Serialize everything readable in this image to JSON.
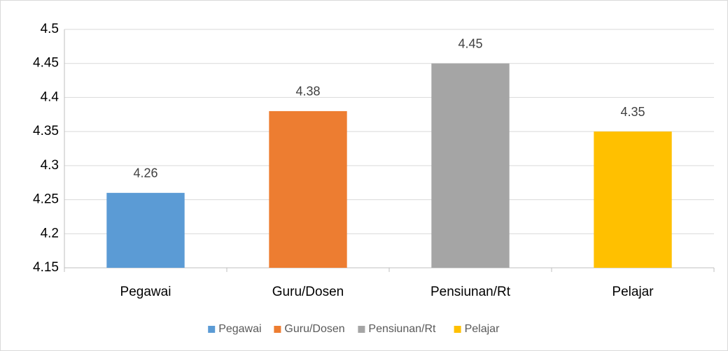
{
  "chart_data": {
    "type": "bar",
    "categories": [
      "Pegawai",
      "Guru/Dosen",
      "Pensiunan/Rt",
      "Pelajar"
    ],
    "values": [
      4.26,
      4.38,
      4.45,
      4.35
    ],
    "colors": [
      "#5b9bd5",
      "#ed7d31",
      "#a5a5a5",
      "#ffc000"
    ],
    "ylim": [
      4.15,
      4.5
    ],
    "yticks": [
      4.15,
      4.2,
      4.25,
      4.3,
      4.35,
      4.4,
      4.45,
      4.5
    ],
    "grid": true,
    "legend": "bottom"
  }
}
